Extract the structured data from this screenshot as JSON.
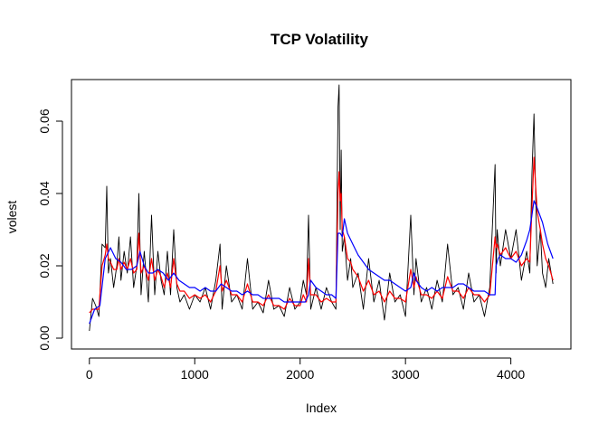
{
  "chart_data": {
    "type": "line",
    "title": "TCP Volatility",
    "xlabel": "Index",
    "ylabel": "volest",
    "xlim": [
      -170,
      4570
    ],
    "ylim": [
      -0.003,
      0.0715
    ],
    "x_ticks": [
      0,
      1000,
      2000,
      3000,
      4000
    ],
    "x_tick_labels": [
      "0",
      "1000",
      "2000",
      "3000",
      "4000"
    ],
    "y_ticks": [
      0.0,
      0.02,
      0.04,
      0.06
    ],
    "y_tick_labels": [
      "0.00",
      "0.02",
      "0.04",
      "0.06"
    ],
    "grid": false,
    "legend": "none",
    "series": [
      {
        "color": "#000000",
        "x": [
          0,
          30,
          60,
          90,
          120,
          150,
          165,
          180,
          200,
          230,
          260,
          280,
          300,
          330,
          360,
          390,
          420,
          450,
          470,
          490,
          520,
          560,
          590,
          620,
          650,
          680,
          710,
          740,
          770,
          800,
          830,
          860,
          900,
          950,
          1000,
          1050,
          1100,
          1150,
          1200,
          1240,
          1260,
          1300,
          1350,
          1400,
          1450,
          1500,
          1550,
          1600,
          1650,
          1700,
          1750,
          1800,
          1850,
          1900,
          1950,
          2000,
          2030,
          2060,
          2080,
          2100,
          2150,
          2200,
          2250,
          2300,
          2340,
          2360,
          2370,
          2380,
          2390,
          2400,
          2420,
          2450,
          2480,
          2500,
          2550,
          2600,
          2650,
          2700,
          2750,
          2800,
          2850,
          2900,
          2950,
          3000,
          3050,
          3080,
          3100,
          3150,
          3200,
          3250,
          3300,
          3350,
          3400,
          3450,
          3500,
          3550,
          3600,
          3650,
          3700,
          3750,
          3800,
          3850,
          3860,
          3870,
          3900,
          3950,
          4000,
          4050,
          4100,
          4150,
          4180,
          4200,
          4220,
          4250,
          4280,
          4300,
          4330,
          4360,
          4400
        ],
        "y": [
          0.002,
          0.011,
          0.009,
          0.006,
          0.026,
          0.025,
          0.042,
          0.018,
          0.022,
          0.014,
          0.02,
          0.028,
          0.016,
          0.024,
          0.018,
          0.028,
          0.014,
          0.02,
          0.04,
          0.012,
          0.024,
          0.01,
          0.034,
          0.012,
          0.024,
          0.016,
          0.012,
          0.024,
          0.012,
          0.03,
          0.014,
          0.01,
          0.012,
          0.008,
          0.012,
          0.01,
          0.014,
          0.008,
          0.016,
          0.026,
          0.008,
          0.02,
          0.01,
          0.012,
          0.008,
          0.022,
          0.008,
          0.01,
          0.007,
          0.016,
          0.008,
          0.009,
          0.006,
          0.014,
          0.008,
          0.01,
          0.016,
          0.012,
          0.034,
          0.008,
          0.014,
          0.008,
          0.014,
          0.01,
          0.008,
          0.064,
          0.07,
          0.03,
          0.052,
          0.024,
          0.028,
          0.016,
          0.022,
          0.014,
          0.018,
          0.008,
          0.022,
          0.01,
          0.016,
          0.005,
          0.018,
          0.01,
          0.012,
          0.006,
          0.034,
          0.012,
          0.022,
          0.01,
          0.014,
          0.008,
          0.016,
          0.01,
          0.026,
          0.012,
          0.014,
          0.008,
          0.018,
          0.01,
          0.012,
          0.006,
          0.014,
          0.048,
          0.018,
          0.03,
          0.02,
          0.03,
          0.022,
          0.03,
          0.016,
          0.024,
          0.018,
          0.045,
          0.062,
          0.02,
          0.03,
          0.018,
          0.014,
          0.022,
          0.015
        ]
      },
      {
        "color": "#ff0000",
        "x": [
          0,
          30,
          60,
          90,
          120,
          150,
          165,
          180,
          200,
          230,
          260,
          280,
          300,
          330,
          360,
          390,
          420,
          450,
          470,
          490,
          520,
          560,
          590,
          620,
          650,
          680,
          710,
          740,
          770,
          800,
          830,
          860,
          900,
          950,
          1000,
          1050,
          1100,
          1150,
          1200,
          1240,
          1260,
          1300,
          1350,
          1400,
          1450,
          1500,
          1550,
          1600,
          1650,
          1700,
          1750,
          1800,
          1850,
          1900,
          1950,
          2000,
          2030,
          2060,
          2080,
          2100,
          2150,
          2200,
          2250,
          2300,
          2340,
          2360,
          2370,
          2380,
          2390,
          2400,
          2420,
          2450,
          2480,
          2500,
          2550,
          2600,
          2650,
          2700,
          2750,
          2800,
          2850,
          2900,
          2950,
          3000,
          3050,
          3080,
          3100,
          3150,
          3200,
          3250,
          3300,
          3350,
          3400,
          3450,
          3500,
          3550,
          3600,
          3650,
          3700,
          3750,
          3800,
          3850,
          3860,
          3870,
          3900,
          3950,
          4000,
          4050,
          4100,
          4150,
          4180,
          4200,
          4220,
          4250,
          4280,
          4300,
          4330,
          4360,
          4400
        ],
        "y": [
          0.007,
          0.008,
          0.008,
          0.008,
          0.02,
          0.023,
          0.026,
          0.022,
          0.021,
          0.019,
          0.019,
          0.022,
          0.019,
          0.021,
          0.019,
          0.022,
          0.018,
          0.019,
          0.029,
          0.018,
          0.02,
          0.016,
          0.022,
          0.016,
          0.019,
          0.017,
          0.014,
          0.018,
          0.014,
          0.022,
          0.015,
          0.013,
          0.013,
          0.011,
          0.012,
          0.011,
          0.012,
          0.01,
          0.013,
          0.02,
          0.013,
          0.016,
          0.012,
          0.012,
          0.01,
          0.015,
          0.01,
          0.01,
          0.009,
          0.012,
          0.009,
          0.009,
          0.008,
          0.011,
          0.009,
          0.009,
          0.012,
          0.01,
          0.022,
          0.012,
          0.012,
          0.01,
          0.011,
          0.01,
          0.01,
          0.04,
          0.046,
          0.038,
          0.04,
          0.03,
          0.028,
          0.022,
          0.021,
          0.019,
          0.017,
          0.013,
          0.016,
          0.012,
          0.013,
          0.01,
          0.013,
          0.011,
          0.011,
          0.01,
          0.019,
          0.014,
          0.017,
          0.012,
          0.012,
          0.011,
          0.013,
          0.011,
          0.017,
          0.013,
          0.013,
          0.011,
          0.014,
          0.012,
          0.012,
          0.01,
          0.012,
          0.028,
          0.025,
          0.026,
          0.023,
          0.025,
          0.022,
          0.024,
          0.02,
          0.022,
          0.021,
          0.036,
          0.05,
          0.035,
          0.03,
          0.026,
          0.022,
          0.02,
          0.016
        ]
      },
      {
        "color": "#0000ff",
        "x": [
          0,
          50,
          100,
          150,
          200,
          250,
          300,
          350,
          400,
          450,
          480,
          520,
          560,
          600,
          650,
          700,
          750,
          800,
          850,
          900,
          950,
          1000,
          1050,
          1100,
          1150,
          1200,
          1250,
          1300,
          1350,
          1400,
          1450,
          1500,
          1550,
          1600,
          1650,
          1700,
          1750,
          1800,
          1850,
          1900,
          1950,
          2000,
          2050,
          2080,
          2100,
          2150,
          2200,
          2250,
          2300,
          2340,
          2360,
          2380,
          2400,
          2420,
          2450,
          2500,
          2550,
          2600,
          2650,
          2700,
          2750,
          2800,
          2850,
          2900,
          2950,
          3000,
          3050,
          3080,
          3100,
          3150,
          3200,
          3250,
          3300,
          3350,
          3400,
          3450,
          3500,
          3550,
          3600,
          3650,
          3700,
          3750,
          3800,
          3850,
          3860,
          3880,
          3900,
          3950,
          4000,
          4050,
          4100,
          4150,
          4180,
          4200,
          4220,
          4250,
          4300,
          4350,
          4400
        ],
        "y": [
          0.004,
          0.008,
          0.009,
          0.022,
          0.025,
          0.022,
          0.021,
          0.019,
          0.019,
          0.02,
          0.024,
          0.02,
          0.018,
          0.018,
          0.019,
          0.018,
          0.016,
          0.018,
          0.016,
          0.015,
          0.014,
          0.014,
          0.013,
          0.014,
          0.013,
          0.013,
          0.015,
          0.014,
          0.013,
          0.013,
          0.012,
          0.013,
          0.012,
          0.012,
          0.011,
          0.011,
          0.011,
          0.011,
          0.01,
          0.01,
          0.01,
          0.01,
          0.01,
          0.012,
          0.016,
          0.014,
          0.013,
          0.012,
          0.012,
          0.011,
          0.029,
          0.029,
          0.028,
          0.033,
          0.029,
          0.026,
          0.023,
          0.021,
          0.019,
          0.018,
          0.017,
          0.016,
          0.016,
          0.015,
          0.014,
          0.013,
          0.014,
          0.018,
          0.016,
          0.014,
          0.013,
          0.014,
          0.013,
          0.014,
          0.014,
          0.014,
          0.015,
          0.015,
          0.014,
          0.013,
          0.013,
          0.013,
          0.012,
          0.012,
          0.02,
          0.022,
          0.023,
          0.022,
          0.022,
          0.021,
          0.023,
          0.027,
          0.03,
          0.034,
          0.038,
          0.036,
          0.032,
          0.026,
          0.022
        ]
      }
    ]
  }
}
